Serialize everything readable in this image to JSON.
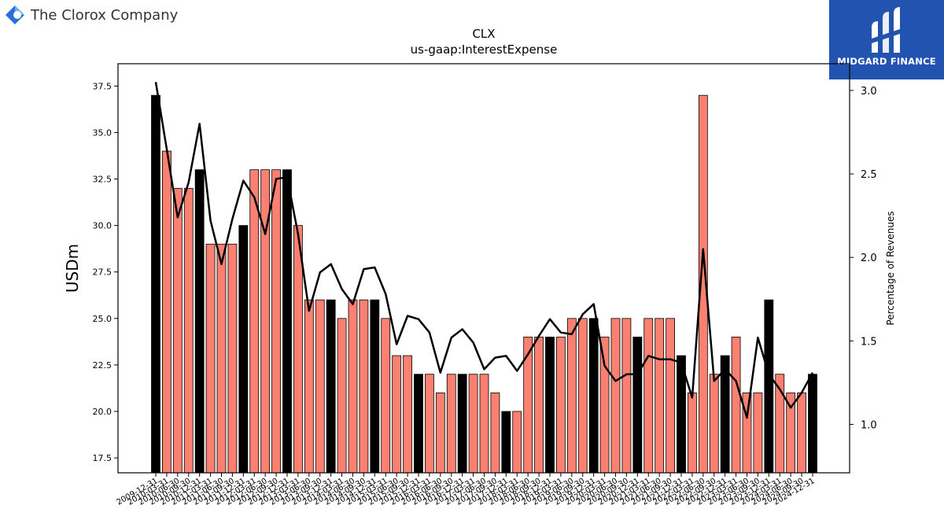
{
  "header": {
    "company_name": "The Clorox Company",
    "company_logo_icon": "clorox-logo-icon",
    "brand_name": "MIDGARD FINANCE",
    "brand_logo_icon": "midgard-logo-icon",
    "brand_color": "#2353b0"
  },
  "chart_data": {
    "type": "bar",
    "title": "CLX",
    "subtitle": "us-gaap:InterestExpense",
    "ylabel": "USDm",
    "ylabel_right": "Percentage of Revenues",
    "ylim": [
      16.7,
      38.7
    ],
    "ylim_right": [
      0.71,
      3.16
    ],
    "yticks": [
      "17.5",
      "20.0",
      "22.5",
      "25.0",
      "27.5",
      "30.0",
      "32.5",
      "35.0",
      "37.5"
    ],
    "yticks_right": [
      "1.0",
      "1.5",
      "2.0",
      "2.5",
      "3.0"
    ],
    "colors": {
      "annual": "#000000",
      "quarterly": "#fa8072",
      "line": "#000000"
    },
    "categories": [
      "2009-12-31",
      "2010-03-31",
      "2010-06-30",
      "2010-09-30",
      "2010-12-31",
      "2011-03-31",
      "2011-06-30",
      "2011-09-30",
      "2011-12-31",
      "2012-03-31",
      "2012-06-30",
      "2012-09-30",
      "2012-12-31",
      "2013-03-31",
      "2013-06-30",
      "2013-09-30",
      "2013-12-31",
      "2014-03-31",
      "2014-06-30",
      "2014-09-30",
      "2014-12-31",
      "2015-03-31",
      "2015-06-30",
      "2015-09-30",
      "2015-12-31",
      "2016-03-31",
      "2016-06-30",
      "2016-09-30",
      "2016-12-31",
      "2017-03-31",
      "2017-06-30",
      "2017-09-30",
      "2017-12-31",
      "2018-03-31",
      "2018-06-30",
      "2018-09-30",
      "2018-12-31",
      "2019-03-31",
      "2019-06-30",
      "2019-09-30",
      "2019-12-31",
      "2020-03-31",
      "2020-06-30",
      "2020-09-30",
      "2020-12-31",
      "2021-03-31",
      "2021-06-30",
      "2021-09-30",
      "2021-12-31",
      "2022-03-31",
      "2022-06-30",
      "2022-09-30",
      "2022-12-31",
      "2023-03-31",
      "2023-06-30",
      "2023-09-30",
      "2023-12-31",
      "2024-03-31",
      "2024-06-30",
      "2024-09-30",
      "2024-12-31"
    ],
    "series": [
      {
        "kind": "bar",
        "values": [
          37,
          34,
          32,
          32,
          33,
          29,
          29,
          29,
          30,
          33,
          33,
          33,
          33,
          30,
          26,
          26,
          26,
          25,
          26,
          26,
          26,
          25,
          23,
          23,
          22,
          22,
          21,
          22,
          22,
          22,
          22,
          21,
          20,
          20,
          24,
          24,
          24,
          24,
          25,
          25,
          25,
          24,
          25,
          25,
          24,
          25,
          25,
          25,
          23,
          21,
          37,
          22,
          23,
          24,
          21,
          21,
          26,
          22,
          21,
          21,
          22
        ],
        "is_annual": [
          1,
          0,
          0,
          0,
          1,
          0,
          0,
          0,
          1,
          0,
          0,
          0,
          1,
          0,
          0,
          0,
          1,
          0,
          0,
          0,
          1,
          0,
          0,
          0,
          1,
          0,
          0,
          0,
          1,
          0,
          0,
          0,
          1,
          0,
          0,
          0,
          1,
          0,
          0,
          0,
          1,
          0,
          0,
          0,
          1,
          0,
          0,
          0,
          1,
          0,
          0,
          0,
          1,
          0,
          0,
          0,
          1,
          0,
          0,
          0,
          1
        ]
      },
      {
        "kind": "line",
        "axis": "right",
        "values": [
          3.05,
          2.65,
          2.24,
          2.45,
          2.8,
          2.22,
          1.96,
          2.23,
          2.46,
          2.36,
          2.14,
          2.47,
          2.48,
          2.14,
          1.68,
          1.91,
          1.96,
          1.81,
          1.72,
          1.93,
          1.94,
          1.78,
          1.48,
          1.65,
          1.63,
          1.55,
          1.31,
          1.52,
          1.57,
          1.49,
          1.33,
          1.4,
          1.41,
          1.32,
          1.42,
          1.53,
          1.63,
          1.55,
          1.54,
          1.66,
          1.72,
          1.35,
          1.26,
          1.3,
          1.3,
          1.41,
          1.39,
          1.39,
          1.37,
          1.16,
          2.05,
          1.26,
          1.33,
          1.26,
          1.04,
          1.52,
          1.3,
          1.21,
          1.1,
          1.19,
          1.31
        ]
      }
    ]
  }
}
